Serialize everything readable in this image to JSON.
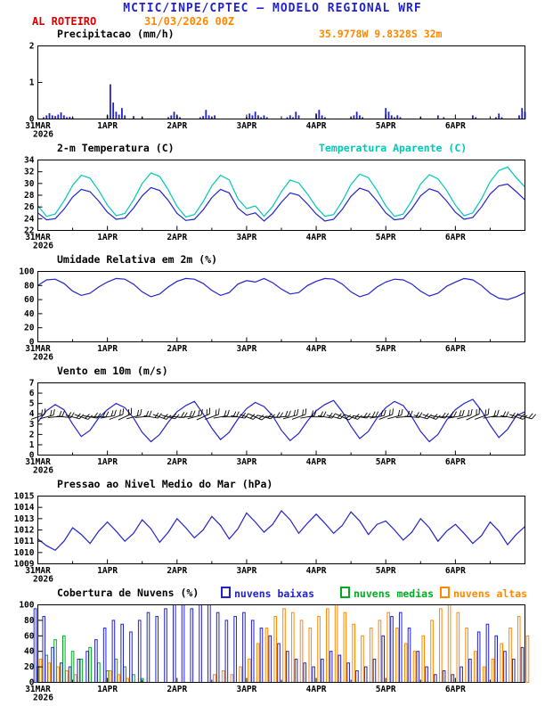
{
  "header": {
    "title": "MCTIC/INPE/CPTEC — MODELO REGIONAL WRF",
    "station": "AL ROTEIRO",
    "run": "31/03/2026 00Z",
    "location": "35.9778W 9.8328S 32m"
  },
  "colors": {
    "header_blue": "#2222cc",
    "red": "#dd0000",
    "orange": "#ff8800",
    "line_blue": "#2222cc",
    "cyan": "#00c8b4",
    "green": "#00aa22",
    "black": "#000000"
  },
  "axis": {
    "t_max_hours": 168,
    "x_major_hours": [
      0,
      24,
      48,
      72,
      96,
      120,
      144
    ],
    "x_major_labels": [
      "31MAR",
      "1APR",
      "2APR",
      "3APR",
      "4APR",
      "5APR",
      "6APR"
    ],
    "x_year": "2026",
    "x_minor_step_hours": 12,
    "grid": false
  },
  "chart_data": [
    {
      "id": "precipitation",
      "type": "bar",
      "title": "Precipitacao (mm/h)",
      "ylim": [
        0,
        2
      ],
      "yticks": [
        0,
        1,
        2
      ],
      "step_hours": 1,
      "color": "#2222cc",
      "values": [
        0,
        0,
        0.05,
        0.1,
        0.16,
        0.1,
        0.08,
        0.12,
        0.18,
        0.1,
        0.05,
        0.06,
        0.04,
        0,
        0,
        0,
        0,
        0,
        0,
        0,
        0,
        0,
        0,
        0,
        0.1,
        0.95,
        0.45,
        0.2,
        0.12,
        0.3,
        0.1,
        0,
        0,
        0.08,
        0,
        0,
        0.05,
        0,
        0,
        0,
        0,
        0,
        0,
        0,
        0,
        0.05,
        0.1,
        0.2,
        0.1,
        0.05,
        0,
        0,
        0,
        0,
        0,
        0,
        0.05,
        0.08,
        0.25,
        0.1,
        0.05,
        0.1,
        0,
        0,
        0,
        0,
        0,
        0,
        0,
        0,
        0,
        0,
        0.05,
        0.15,
        0.1,
        0.2,
        0.1,
        0.05,
        0.1,
        0.05,
        0,
        0,
        0,
        0,
        0,
        0,
        0.05,
        0.1,
        0.05,
        0.2,
        0.1,
        0,
        0,
        0,
        0,
        0,
        0.15,
        0.25,
        0.1,
        0.05,
        0,
        0,
        0,
        0,
        0,
        0,
        0,
        0,
        0.05,
        0.1,
        0.2,
        0.1,
        0.05,
        0,
        0,
        0,
        0,
        0,
        0,
        0,
        0.3,
        0.2,
        0.1,
        0.05,
        0.1,
        0.05,
        0,
        0,
        0,
        0,
        0,
        0,
        0.05,
        0,
        0,
        0,
        0,
        0,
        0.1,
        0,
        0.05,
        0,
        0,
        0,
        0,
        0,
        0,
        0,
        0,
        0,
        0.1,
        0.05,
        0,
        0,
        0,
        0,
        0,
        0,
        0.05,
        0.15,
        0.05,
        0,
        0,
        0,
        0,
        0,
        0.1,
        0.3,
        0.2
      ]
    },
    {
      "id": "temperature",
      "type": "line",
      "title": "2-m Temperatura (C)",
      "title_right": "Temperatura Aparente (C)",
      "ylim": [
        22,
        34
      ],
      "yticks": [
        22,
        24,
        26,
        28,
        30,
        32,
        34
      ],
      "step_hours": 3,
      "series": [
        {
          "name": "2-m Temperatura (C)",
          "color": "#2222cc",
          "values": [
            25.0,
            23.8,
            24.0,
            25.6,
            27.7,
            29.0,
            28.6,
            27.0,
            25.1,
            23.9,
            24.1,
            25.8,
            27.9,
            29.3,
            28.8,
            27.1,
            24.9,
            23.7,
            23.9,
            25.5,
            27.6,
            29.0,
            28.4,
            25.8,
            24.6,
            25.0,
            23.6,
            24.9,
            26.8,
            28.4,
            28.0,
            26.5,
            24.8,
            23.6,
            23.9,
            25.6,
            27.8,
            29.2,
            28.7,
            27.0,
            25.0,
            23.8,
            24.0,
            25.7,
            27.9,
            29.1,
            28.6,
            27.0,
            25.1,
            23.9,
            24.2,
            26.0,
            28.2,
            29.6,
            29.9,
            28.6,
            27.2
          ]
        },
        {
          "name": "Temperatura Aparente (C)",
          "color": "#00c8b4",
          "values": [
            26.2,
            24.4,
            24.8,
            27.0,
            29.7,
            31.4,
            30.9,
            28.8,
            26.3,
            24.5,
            24.9,
            27.2,
            30.0,
            31.8,
            31.2,
            28.9,
            26.1,
            24.3,
            24.7,
            26.9,
            29.6,
            31.4,
            30.6,
            27.4,
            25.7,
            26.2,
            24.4,
            26.1,
            28.6,
            30.6,
            30.1,
            28.2,
            26.0,
            24.4,
            24.7,
            27.0,
            29.8,
            31.6,
            31.0,
            28.8,
            26.2,
            24.4,
            24.8,
            27.1,
            29.9,
            31.5,
            30.8,
            28.8,
            26.3,
            24.5,
            25.0,
            27.4,
            30.3,
            32.2,
            32.8,
            31.0,
            29.4
          ]
        }
      ]
    },
    {
      "id": "humidity",
      "type": "line",
      "title": "Umidade Relativa em 2m (%)",
      "ylim": [
        0,
        100
      ],
      "yticks": [
        0,
        20,
        40,
        60,
        80,
        100
      ],
      "step_hours": 3,
      "series": [
        {
          "name": "Umidade Relativa em 2m",
          "color": "#2222cc",
          "values": [
            80,
            88,
            89,
            83,
            72,
            66,
            69,
            78,
            85,
            90,
            89,
            82,
            71,
            64,
            68,
            78,
            86,
            90,
            89,
            83,
            73,
            66,
            70,
            82,
            87,
            85,
            90,
            84,
            75,
            68,
            70,
            80,
            86,
            90,
            89,
            82,
            71,
            64,
            68,
            78,
            85,
            89,
            88,
            82,
            72,
            65,
            69,
            79,
            85,
            90,
            88,
            80,
            69,
            62,
            60,
            64,
            70
          ]
        }
      ]
    },
    {
      "id": "wind",
      "type": "line",
      "title": "Vento em 10m (m/s)",
      "ylim": [
        0,
        7
      ],
      "yticks": [
        0,
        1,
        2,
        3,
        4,
        5,
        6,
        7
      ],
      "step_hours": 3,
      "series": [
        {
          "name": "Vento em 10m",
          "color": "#2222cc",
          "values": [
            3.2,
            4.3,
            4.9,
            4.4,
            3.0,
            1.8,
            2.4,
            3.6,
            4.4,
            5.0,
            4.6,
            3.6,
            2.2,
            1.3,
            2.0,
            3.2,
            4.2,
            4.8,
            5.2,
            4.0,
            2.6,
            1.5,
            2.2,
            3.5,
            4.5,
            5.1,
            4.7,
            3.8,
            2.4,
            1.4,
            2.1,
            3.3,
            4.3,
            4.9,
            5.3,
            4.2,
            2.8,
            1.6,
            2.3,
            3.6,
            4.6,
            5.2,
            4.8,
            3.7,
            2.3,
            1.3,
            2.0,
            3.4,
            4.4,
            5.0,
            5.4,
            4.3,
            2.9,
            1.7,
            2.5,
            3.8,
            4.2
          ]
        }
      ],
      "barbs": {
        "y": 3.7,
        "color": "#000000",
        "angles": [
          -20,
          -15,
          -5,
          5,
          15,
          20,
          10,
          0,
          -10,
          -20,
          -25,
          -15,
          -5,
          10,
          20,
          15,
          5,
          -5,
          -15,
          -25,
          -20,
          -10,
          0,
          10,
          20,
          25,
          15,
          5,
          -5,
          -15,
          -20,
          -10,
          0,
          10,
          15,
          25,
          20,
          10,
          0,
          -10,
          -20,
          -15,
          -5,
          5,
          15,
          20,
          10,
          0,
          -10,
          -15,
          -25,
          -20,
          -10,
          0,
          10,
          20,
          15
        ]
      }
    },
    {
      "id": "pressure",
      "type": "line",
      "title": "Pressao ao Nivel Medio do Mar (hPa)",
      "ylim": [
        1009,
        1015
      ],
      "yticks": [
        1009,
        1010,
        1011,
        1012,
        1013,
        1014,
        1015
      ],
      "step_hours": 3,
      "series": [
        {
          "name": "Pressao ao Nivel Medio do Mar",
          "color": "#2222cc",
          "values": [
            1011.2,
            1010.6,
            1010.2,
            1011.0,
            1012.2,
            1011.6,
            1010.8,
            1011.9,
            1012.7,
            1011.9,
            1011.0,
            1011.7,
            1012.9,
            1012.1,
            1010.9,
            1011.8,
            1013.0,
            1012.2,
            1011.3,
            1012.0,
            1013.2,
            1012.4,
            1011.2,
            1012.1,
            1013.5,
            1012.7,
            1011.8,
            1012.5,
            1013.7,
            1012.9,
            1011.7,
            1012.6,
            1013.4,
            1012.6,
            1011.7,
            1012.4,
            1013.6,
            1012.8,
            1011.6,
            1012.5,
            1012.8,
            1012.0,
            1011.1,
            1011.8,
            1013.0,
            1012.2,
            1011.0,
            1011.9,
            1012.5,
            1011.7,
            1010.8,
            1011.5,
            1012.7,
            1011.9,
            1010.7,
            1011.6,
            1012.3
          ]
        }
      ]
    },
    {
      "id": "clouds",
      "type": "cloudbar",
      "title": "Cobertura de Nuvens (%)",
      "ylim": [
        0,
        100
      ],
      "yticks": [
        0,
        20,
        40,
        60,
        80,
        100
      ],
      "step_hours": 3,
      "series": [
        {
          "name": "nuvens baixas",
          "color": "#2222cc",
          "values": [
            95,
            85,
            45,
            25,
            20,
            30,
            40,
            55,
            70,
            80,
            75,
            65,
            80,
            90,
            85,
            95,
            100,
            100,
            95,
            100,
            100,
            90,
            80,
            85,
            90,
            80,
            70,
            60,
            50,
            40,
            30,
            25,
            20,
            30,
            40,
            35,
            25,
            15,
            20,
            30,
            60,
            85,
            90,
            70,
            40,
            20,
            10,
            15,
            10,
            20,
            30,
            65,
            75,
            60,
            40,
            30,
            45
          ]
        },
        {
          "name": "nuvens medias",
          "color": "#00aa22",
          "values": [
            20,
            35,
            55,
            60,
            40,
            30,
            45,
            25,
            15,
            30,
            20,
            10,
            5,
            0,
            0,
            0,
            0,
            0,
            0,
            0,
            0,
            0,
            0,
            0,
            0,
            0,
            0,
            0,
            0,
            0,
            0,
            0,
            0,
            0,
            0,
            0,
            0,
            0,
            0,
            0,
            0,
            0,
            0,
            0,
            0,
            0,
            0,
            0,
            0,
            0,
            0,
            0,
            0,
            0,
            0,
            0,
            0
          ]
        },
        {
          "name": "nuvens altas",
          "color": "#ff8800",
          "values": [
            30,
            25,
            20,
            15,
            10,
            0,
            0,
            0,
            15,
            10,
            5,
            0,
            0,
            0,
            0,
            0,
            0,
            0,
            0,
            0,
            10,
            15,
            10,
            20,
            30,
            50,
            70,
            85,
            95,
            90,
            80,
            70,
            85,
            95,
            100,
            90,
            75,
            60,
            70,
            80,
            90,
            70,
            50,
            40,
            60,
            80,
            95,
            100,
            90,
            70,
            40,
            20,
            30,
            50,
            70,
            85,
            60
          ]
        }
      ]
    }
  ]
}
